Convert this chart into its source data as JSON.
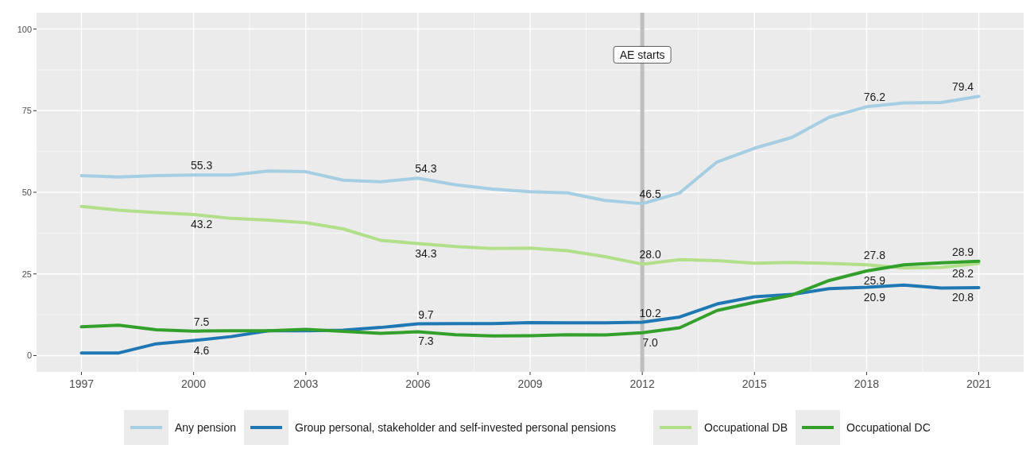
{
  "chart_data": {
    "type": "line",
    "x": [
      1997,
      1998,
      1999,
      2000,
      2001,
      2002,
      2003,
      2004,
      2005,
      2006,
      2007,
      2008,
      2009,
      2010,
      2011,
      2012,
      2013,
      2014,
      2015,
      2016,
      2017,
      2018,
      2019,
      2020,
      2021
    ],
    "series": [
      {
        "name": "Any pension",
        "color": "#a6cee3",
        "values": [
          55.1,
          54.7,
          55.1,
          55.3,
          55.3,
          56.5,
          56.3,
          53.7,
          53.2,
          54.3,
          52.3,
          51.0,
          50.2,
          49.8,
          47.5,
          46.5,
          49.8,
          59.3,
          63.5,
          66.8,
          73.0,
          76.2,
          77.4,
          77.5,
          79.4
        ],
        "value_labels": [
          null,
          null,
          null,
          "55.3",
          null,
          null,
          null,
          null,
          null,
          "54.3",
          null,
          null,
          null,
          null,
          null,
          "46.5",
          null,
          null,
          null,
          null,
          null,
          "76.2",
          null,
          null,
          "79.4"
        ]
      },
      {
        "name": "Group personal, stakeholder and self-invested personal pensions",
        "color": "#1f78b4",
        "values": [
          0.8,
          0.8,
          3.6,
          4.6,
          5.8,
          7.6,
          7.6,
          7.8,
          8.6,
          9.7,
          9.8,
          9.8,
          10.1,
          10.0,
          10.0,
          10.2,
          11.8,
          15.8,
          18.0,
          18.7,
          20.5,
          20.9,
          21.6,
          20.7,
          20.8
        ],
        "value_labels": [
          null,
          null,
          null,
          "4.6",
          null,
          null,
          null,
          null,
          null,
          "9.7",
          null,
          null,
          null,
          null,
          null,
          "10.2",
          null,
          null,
          null,
          null,
          null,
          "20.9",
          null,
          null,
          "20.8"
        ]
      },
      {
        "name": "Occupational DB",
        "color": "#b2df8a",
        "values": [
          45.7,
          44.5,
          43.8,
          43.2,
          42.0,
          41.5,
          40.7,
          38.8,
          35.3,
          34.3,
          33.4,
          32.8,
          32.9,
          32.1,
          30.3,
          28.0,
          29.4,
          29.1,
          28.3,
          28.5,
          28.2,
          27.8,
          26.8,
          27.0,
          28.2
        ],
        "value_labels": [
          null,
          null,
          null,
          "43.2",
          null,
          null,
          null,
          null,
          null,
          "34.3",
          null,
          null,
          null,
          null,
          null,
          "28.0",
          null,
          null,
          null,
          null,
          null,
          "27.8",
          null,
          null,
          "28.2"
        ]
      },
      {
        "name": "Occupational DC",
        "color": "#33a02c",
        "values": [
          8.8,
          9.3,
          7.9,
          7.5,
          7.6,
          7.6,
          8.0,
          7.4,
          6.8,
          7.3,
          6.4,
          6.0,
          6.1,
          6.4,
          6.3,
          7.0,
          8.5,
          13.8,
          16.3,
          18.5,
          23.0,
          25.9,
          27.8,
          28.4,
          28.9
        ],
        "value_labels": [
          null,
          null,
          null,
          "7.5",
          null,
          null,
          null,
          null,
          null,
          "7.3",
          null,
          null,
          null,
          null,
          null,
          "7.0",
          null,
          null,
          null,
          null,
          null,
          "25.9",
          null,
          null,
          "28.9"
        ]
      }
    ],
    "xlim": [
      1995.8,
      2022.2
    ],
    "xticks": [
      1997,
      2000,
      2003,
      2006,
      2009,
      2012,
      2015,
      2018,
      2021
    ],
    "ylim": [
      -5,
      105
    ],
    "yticks": [
      0,
      25,
      50,
      75,
      100
    ],
    "ref_lines": [
      {
        "axis": "x",
        "value": 2012,
        "label": "AE starts",
        "color": "#bebebe"
      }
    ],
    "grid": true,
    "legend": "bottom",
    "line_style": "solid",
    "marker": "none"
  }
}
